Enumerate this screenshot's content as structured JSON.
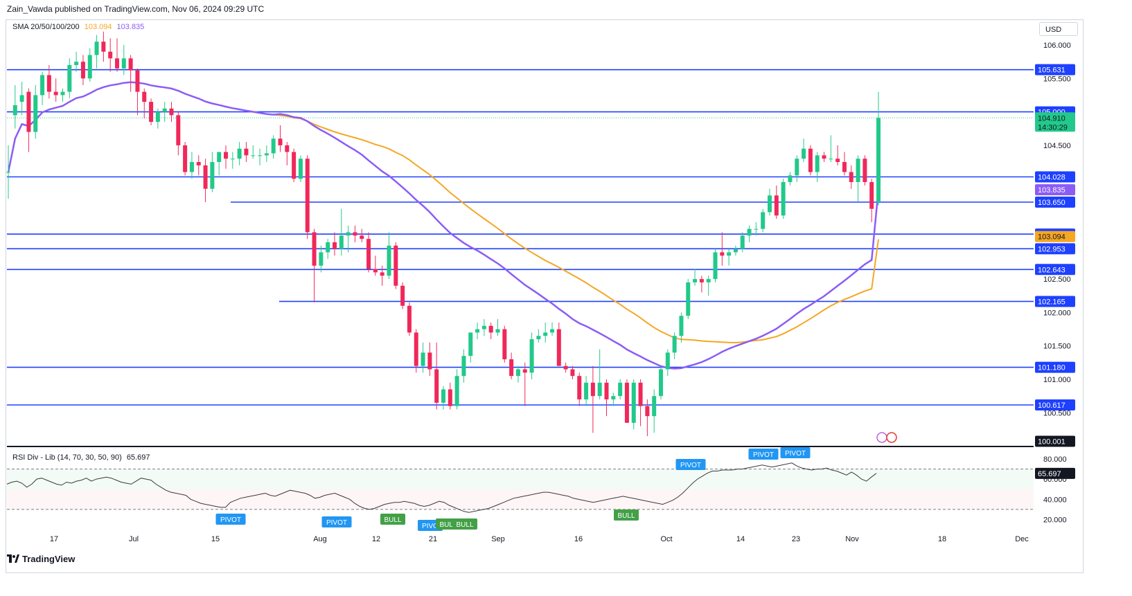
{
  "header": {
    "publish_line": "Zain_Vawda published on TradingView.com, Nov 06, 2024 09:29 UTC"
  },
  "legend": {
    "sma_label": "SMA 20/50/100/200",
    "sma_value_1": "103.094",
    "sma_value_2": "103.835",
    "rsi_label": "RSI Div - Lib (14, 70, 30, 50, 90)",
    "rsi_value": "65.697"
  },
  "currency": "USD",
  "footer": {
    "brand": "TradingView"
  },
  "colors": {
    "up": "#22c98a",
    "down": "#f0285a",
    "level_line": "#1e40ff",
    "sma_orange": "#f5a623",
    "sma_purple": "#8b5cf6",
    "rsi_line": "#3a3a3a",
    "tag_blue": "#2196f3",
    "tag_green": "#43a047",
    "price_tag_green": "#22c98a"
  },
  "chart_data": [
    {
      "type": "candlestick",
      "title": "",
      "ylim": [
        100.0,
        106.45
      ],
      "price_axis_ticks": [
        "106.000",
        "105.500",
        "104.500",
        "102.500",
        "102.000",
        "101.500",
        "101.000",
        "100.500"
      ],
      "date_axis_labels": [
        "17",
        "Jul",
        "15",
        "Aug",
        "12",
        "21",
        "Sep",
        "16",
        "Oct",
        "14",
        "23",
        "Nov",
        "18",
        "Dec"
      ],
      "horizontal_levels": [
        {
          "value": 105.631,
          "label": "105.631"
        },
        {
          "value": 105.0,
          "label": "105.000"
        },
        {
          "value": 104.028,
          "label": "104.028"
        },
        {
          "value": 103.65,
          "label": "103.650"
        },
        {
          "value": 103.172,
          "label": "103.172"
        },
        {
          "value": 102.953,
          "label": "102.953"
        },
        {
          "value": 102.643,
          "label": "102.643"
        },
        {
          "value": 102.165,
          "label": "102.165"
        },
        {
          "value": 101.18,
          "label": "101.180"
        },
        {
          "value": 100.617,
          "label": "100.617"
        },
        {
          "value": 100.001,
          "label": "100.001"
        }
      ],
      "current_price": {
        "value": 104.91,
        "label": "104.910",
        "countdown": "14:30:29"
      },
      "sma_tags": [
        {
          "value": 103.835,
          "label": "103.835"
        },
        {
          "value": 103.094,
          "label": "103.094"
        }
      ],
      "candles": [
        [
          104.1,
          104.5,
          103.7,
          104.1
        ],
        [
          104.95,
          105.4,
          104.75,
          105.1
        ],
        [
          105.15,
          105.45,
          104.95,
          105.25
        ],
        [
          105.3,
          105.35,
          104.4,
          104.7
        ],
        [
          104.7,
          105.4,
          104.6,
          105.25
        ],
        [
          105.25,
          105.6,
          105.1,
          105.55
        ],
        [
          105.55,
          105.7,
          105.2,
          105.3
        ],
        [
          105.3,
          105.5,
          105.15,
          105.25
        ],
        [
          105.25,
          105.35,
          105.15,
          105.3
        ],
        [
          105.3,
          105.8,
          105.2,
          105.7
        ],
        [
          105.7,
          105.9,
          105.6,
          105.75
        ],
        [
          105.75,
          105.85,
          105.4,
          105.5
        ],
        [
          105.5,
          105.95,
          105.45,
          105.85
        ],
        [
          105.85,
          106.15,
          105.65,
          106.05
        ],
        [
          106.05,
          106.2,
          105.75,
          105.9
        ],
        [
          105.9,
          106.1,
          105.6,
          105.8
        ],
        [
          105.8,
          106.1,
          105.6,
          105.65
        ],
        [
          105.65,
          106.0,
          105.55,
          105.8
        ],
        [
          105.8,
          105.85,
          105.3,
          105.62
        ],
        [
          105.62,
          105.65,
          104.95,
          105.3
        ],
        [
          105.3,
          105.35,
          104.9,
          105.15
        ],
        [
          105.15,
          105.2,
          104.8,
          104.85
        ],
        [
          104.85,
          105.05,
          104.75,
          105.0
        ],
        [
          105.0,
          105.15,
          104.85,
          105.05
        ],
        [
          105.05,
          105.15,
          104.85,
          104.95
        ],
        [
          104.95,
          105.0,
          104.35,
          104.5
        ],
        [
          104.5,
          104.55,
          104.05,
          104.1
        ],
        [
          104.1,
          104.4,
          104.0,
          104.25
        ],
        [
          104.25,
          104.35,
          104.05,
          104.2
        ],
        [
          104.2,
          104.3,
          103.65,
          103.85
        ],
        [
          103.85,
          104.4,
          103.8,
          104.25
        ],
        [
          104.25,
          104.4,
          104.05,
          104.4
        ],
        [
          104.4,
          104.5,
          104.15,
          104.3
        ],
        [
          104.3,
          104.4,
          104.15,
          104.3
        ],
        [
          104.3,
          104.55,
          104.2,
          104.45
        ],
        [
          104.45,
          104.55,
          104.25,
          104.35
        ],
        [
          104.35,
          104.5,
          104.3,
          104.35
        ],
        [
          104.35,
          104.45,
          104.2,
          104.35
        ],
        [
          104.35,
          104.5,
          104.25,
          104.38
        ],
        [
          104.38,
          104.65,
          104.3,
          104.6
        ],
        [
          104.6,
          104.8,
          104.4,
          104.5
        ],
        [
          104.5,
          104.55,
          104.2,
          104.4
        ],
        [
          104.4,
          104.45,
          103.95,
          104.0
        ],
        [
          104.0,
          104.35,
          103.95,
          104.3
        ],
        [
          104.3,
          104.35,
          103.1,
          103.2
        ],
        [
          103.2,
          103.25,
          102.15,
          102.7
        ],
        [
          102.7,
          103.0,
          102.6,
          102.9
        ],
        [
          102.9,
          103.1,
          102.8,
          103.05
        ],
        [
          103.05,
          103.2,
          102.85,
          102.95
        ],
        [
          102.95,
          103.55,
          102.85,
          103.15
        ],
        [
          103.15,
          103.3,
          102.9,
          103.2
        ],
        [
          103.2,
          103.3,
          103.05,
          103.15
        ],
        [
          103.15,
          103.25,
          103.05,
          103.1
        ],
        [
          103.1,
          103.2,
          102.6,
          102.65
        ],
        [
          102.65,
          102.85,
          102.55,
          102.6
        ],
        [
          102.6,
          102.7,
          102.4,
          102.55
        ],
        [
          102.55,
          103.2,
          102.5,
          103.0
        ],
        [
          103.0,
          103.05,
          102.35,
          102.4
        ],
        [
          102.4,
          102.45,
          102.05,
          102.1
        ],
        [
          102.1,
          102.15,
          101.65,
          101.7
        ],
        [
          101.7,
          101.75,
          101.1,
          101.2
        ],
        [
          101.2,
          101.55,
          101.1,
          101.4
        ],
        [
          101.4,
          101.55,
          101.05,
          101.15
        ],
        [
          101.15,
          101.55,
          100.55,
          100.65
        ],
        [
          100.65,
          100.9,
          100.55,
          100.85
        ],
        [
          100.85,
          100.95,
          100.55,
          100.6
        ],
        [
          100.6,
          101.15,
          100.55,
          101.05
        ],
        [
          101.05,
          101.45,
          100.95,
          101.35
        ],
        [
          101.35,
          101.7,
          101.25,
          101.7
        ],
        [
          101.7,
          101.85,
          101.6,
          101.75
        ],
        [
          101.75,
          101.9,
          101.65,
          101.8
        ],
        [
          101.8,
          101.85,
          101.6,
          101.7
        ],
        [
          101.7,
          101.9,
          101.65,
          101.75
        ],
        [
          101.75,
          101.8,
          101.25,
          101.3
        ],
        [
          101.3,
          101.4,
          101.0,
          101.05
        ],
        [
          101.05,
          101.2,
          100.95,
          101.15
        ],
        [
          101.15,
          101.25,
          100.6,
          101.1
        ],
        [
          101.1,
          101.7,
          101.0,
          101.6
        ],
        [
          101.6,
          101.75,
          101.55,
          101.65
        ],
        [
          101.65,
          101.85,
          101.55,
          101.7
        ],
        [
          101.7,
          101.85,
          101.65,
          101.75
        ],
        [
          101.75,
          101.85,
          101.2,
          101.2
        ],
        [
          101.2,
          101.25,
          101.1,
          101.15
        ],
        [
          101.15,
          101.2,
          101.0,
          101.05
        ],
        [
          101.05,
          101.1,
          100.6,
          100.7
        ],
        [
          100.7,
          101.05,
          100.6,
          100.95
        ],
        [
          100.95,
          101.2,
          100.2,
          100.75
        ],
        [
          100.75,
          101.45,
          100.7,
          100.95
        ],
        [
          100.95,
          101.0,
          100.45,
          100.7
        ],
        [
          100.7,
          100.8,
          100.6,
          100.75
        ],
        [
          100.75,
          101.0,
          100.7,
          100.95
        ],
        [
          100.95,
          101.0,
          100.35,
          100.35
        ],
        [
          100.35,
          101.0,
          100.25,
          100.95
        ],
        [
          100.95,
          101.0,
          100.3,
          100.6
        ],
        [
          100.6,
          100.7,
          100.15,
          100.45
        ],
        [
          100.45,
          100.85,
          100.2,
          100.75
        ],
        [
          100.75,
          101.2,
          100.7,
          101.15
        ],
        [
          101.15,
          101.45,
          101.05,
          101.4
        ],
        [
          101.4,
          101.7,
          101.3,
          101.65
        ],
        [
          101.65,
          102.0,
          101.55,
          101.95
        ],
        [
          101.95,
          102.5,
          101.9,
          102.45
        ],
        [
          102.45,
          102.65,
          102.4,
          102.5
        ],
        [
          102.5,
          102.55,
          102.3,
          102.45
        ],
        [
          102.45,
          102.55,
          102.25,
          102.5
        ],
        [
          102.5,
          102.95,
          102.45,
          102.9
        ],
        [
          102.9,
          103.2,
          102.7,
          102.85
        ],
        [
          102.85,
          102.95,
          102.7,
          102.9
        ],
        [
          102.9,
          103.0,
          102.85,
          102.95
        ],
        [
          102.95,
          103.2,
          102.9,
          103.15
        ],
        [
          103.15,
          103.3,
          103.05,
          103.25
        ],
        [
          103.25,
          103.35,
          103.15,
          103.25
        ],
        [
          103.25,
          103.55,
          103.2,
          103.5
        ],
        [
          103.5,
          103.85,
          103.45,
          103.75
        ],
        [
          103.75,
          103.9,
          103.4,
          103.45
        ],
        [
          103.45,
          104.0,
          103.4,
          103.95
        ],
        [
          103.95,
          104.1,
          103.9,
          104.05
        ],
        [
          104.05,
          104.35,
          103.95,
          104.3
        ],
        [
          104.3,
          104.6,
          104.25,
          104.45
        ],
        [
          104.45,
          104.5,
          104.05,
          104.1
        ],
        [
          104.1,
          104.4,
          103.95,
          104.35
        ],
        [
          104.35,
          104.4,
          104.25,
          104.3
        ],
        [
          104.3,
          104.65,
          104.25,
          104.3
        ],
        [
          104.3,
          104.5,
          104.2,
          104.25
        ],
        [
          104.25,
          104.4,
          104.05,
          104.1
        ],
        [
          104.1,
          104.2,
          103.85,
          103.95
        ],
        [
          103.95,
          104.35,
          103.65,
          104.3
        ],
        [
          104.3,
          104.35,
          103.9,
          103.95
        ],
        [
          103.95,
          104.0,
          103.35,
          103.55
        ],
        [
          103.65,
          105.3,
          103.6,
          104.91
        ]
      ]
    },
    {
      "type": "line",
      "title": "",
      "ylim": [
        15,
        90
      ],
      "rsi_axis_ticks": [
        "80.000",
        "60.000",
        "40.000",
        "20.000"
      ],
      "bands": [
        70,
        50,
        30
      ],
      "current_value": {
        "value": 65.697,
        "label": "65.697"
      },
      "series": [
        {
          "values": [
            55,
            57,
            58,
            56,
            52,
            55,
            60,
            61,
            59,
            57,
            55,
            54,
            57,
            56,
            58,
            59,
            61,
            58,
            60,
            61,
            62,
            61,
            59,
            57,
            56,
            55,
            58,
            61,
            60,
            59,
            55,
            52,
            49,
            47,
            46,
            45,
            44,
            40,
            38,
            36,
            35,
            34,
            33,
            32,
            32,
            37,
            39,
            41,
            42,
            43,
            44,
            45,
            46,
            44,
            43,
            45,
            47,
            49,
            48,
            47,
            46,
            44,
            41,
            42,
            44,
            45,
            46,
            44,
            42,
            40,
            36,
            33,
            31,
            30,
            31,
            33,
            35,
            36,
            37,
            37,
            38,
            37,
            36,
            34,
            33,
            34,
            36,
            38,
            37,
            34,
            32,
            30,
            28,
            27,
            28,
            29,
            30,
            31,
            33,
            35,
            37,
            39,
            41,
            42,
            43,
            44,
            45,
            46,
            47,
            47,
            46,
            45,
            44,
            43,
            41,
            40,
            39,
            38,
            37,
            38,
            39,
            40,
            41,
            42,
            43,
            42,
            41,
            40,
            39,
            38,
            37,
            36,
            35,
            37,
            39,
            42,
            46,
            51,
            56,
            60,
            63,
            66,
            68,
            68,
            69,
            69,
            69,
            70,
            70,
            71,
            72,
            73,
            74,
            73,
            72,
            73,
            74,
            75,
            76,
            73,
            71,
            70,
            69,
            70,
            70,
            71,
            69,
            68,
            66,
            64,
            67,
            64,
            60,
            58,
            62,
            65.7
          ]
        }
      ],
      "signal_labels": [
        "PIVOT",
        "PIVOT",
        "BULL",
        "PIVO",
        "BULL",
        "BULL",
        "BULL",
        "PIVOT",
        "PIVOT",
        "PIVOT"
      ]
    }
  ]
}
